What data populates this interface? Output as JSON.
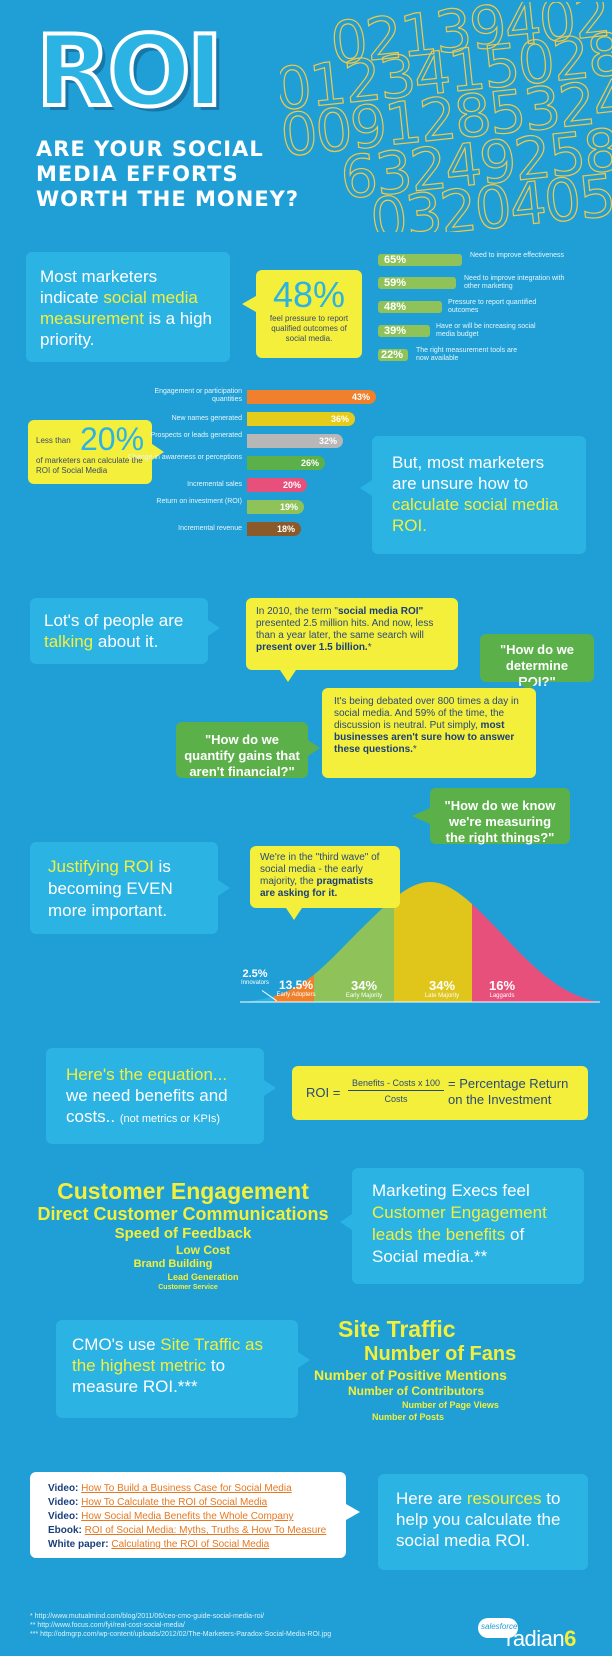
{
  "header": {
    "roi": "ROI",
    "subtitle_lines": [
      "ARE YOUR SOCIAL",
      "MEDIA EFFORTS",
      "WORTH THE MONEY?"
    ],
    "digit_lines": [
      "0213940253",
      "01234150281",
      "0091285324",
      "63249258",
      "03204053"
    ]
  },
  "priority": {
    "text_before": "Most marketers indicate ",
    "text_hl": "social media measurement",
    "text_after": " is a high priority.",
    "stat": "48%",
    "stat_desc": "feel pressure to report qualified outcomes of social media."
  },
  "priority_bars": [
    {
      "value": "65%",
      "label": "Need to improve effectiveness",
      "fraction": 0.65
    },
    {
      "value": "59%",
      "label": "Need to improve integration with other marketing",
      "fraction": 0.59
    },
    {
      "value": "48%",
      "label": "Pressure to report quantified outcomes",
      "fraction": 0.48
    },
    {
      "value": "39%",
      "label": "Have or will be increasing social media budget",
      "fraction": 0.39
    },
    {
      "value": "22%",
      "label": "The right measurement tools are now available",
      "fraction": 0.22
    }
  ],
  "calc": {
    "less_than": "Less than",
    "stat": "20%",
    "stat_desc": "of marketers can calculate the ROI of Social Media",
    "unsure_before": "But, most marketers are unsure how to ",
    "unsure_hl": "calculate social media ROI."
  },
  "metric_bars": [
    {
      "label": "Engagement or participation quantities",
      "value": "43%",
      "fraction": 0.43,
      "color": "#f0802b"
    },
    {
      "label": "New names generated",
      "value": "36%",
      "fraction": 0.36,
      "color": "#e6cc1a"
    },
    {
      "label": "Prospects or leads generated",
      "value": "32%",
      "fraction": 0.32,
      "color": "#b7b7b7"
    },
    {
      "label": "Change in awareness or perceptions",
      "value": "26%",
      "fraction": 0.26,
      "color": "#5cb04a"
    },
    {
      "label": "Incremental sales",
      "value": "20%",
      "fraction": 0.2,
      "color": "#e8507c"
    },
    {
      "label": "Return on investment (ROI)",
      "value": "19%",
      "fraction": 0.19,
      "color": "#8fc35a"
    },
    {
      "label": "Incremental revenue",
      "value": "18%",
      "fraction": 0.18,
      "color": "#8a5a2a"
    }
  ],
  "talking": {
    "text_before": "Lot's of people are ",
    "text_hl": "talking",
    "text_after": " about it.",
    "bubble1_a": "In 2010, the term \"",
    "bubble1_b": "social media ROI\"",
    "bubble1_c": " presented 2.5 million hits. And now, less than a year later, the same search will ",
    "bubble1_d": "present over 1.5 billion.",
    "bubble1_e": "*",
    "q1": "\"How do we determine ROI?\"",
    "bubble2_a": "It's being debated over 800 times a day in social media. And 59% of the time, the discussion is neutral. Put simply, ",
    "bubble2_b": "most businesses aren't sure how to answer these questions.",
    "bubble2_c": "*",
    "q2": "\"How do we quantify gains that aren't financial?\"",
    "q3": "\"How do we know we're measuring the right things?\""
  },
  "justify": {
    "text_hl": "Justifying ROI",
    "text_after": " is becoming EVEN more important.",
    "bubble_a": "We're in the \"third wave\" of social media - the early majority, the ",
    "bubble_b": "pragmatists are asking for it."
  },
  "adoption": [
    {
      "value": "2.5%",
      "label": "Innovators",
      "color": "#2bb3e4"
    },
    {
      "value": "13.5%",
      "label": "Early Adopters",
      "color": "#f0802b"
    },
    {
      "value": "34%",
      "label": "Early Majority",
      "color": "#8fc35a"
    },
    {
      "value": "34%",
      "label": "Late Majority",
      "color": "#e0c51a"
    },
    {
      "value": "16%",
      "label": "Laggards",
      "color": "#e8507c"
    }
  ],
  "equation": {
    "text_hl": "Here's the equation...",
    "text_after": "we need benefits and costs..",
    "note": "(not metrics or KPIs)",
    "roi": "ROI =",
    "numerator": "Benefits - Costs x 100",
    "denominator": "Costs",
    "result": "= Percentage Return on the Investment"
  },
  "engagement": {
    "list": [
      "Customer Engagement",
      "Direct Customer Communications",
      "Speed of Feedback",
      "Low Cost",
      "Brand Building",
      "Lead Generation",
      "Customer Service"
    ],
    "text_before": "Marketing Execs feel ",
    "text_hl": "Customer Engagement leads the benefits",
    "text_after": " of Social media.**"
  },
  "traffic": {
    "text_before": "CMO's use ",
    "text_hl": "Site Traffic as the highest metric",
    "text_after": " to measure ROI.***",
    "list": [
      "Site Traffic",
      "Number of Fans",
      "Number of Positive Mentions",
      "Number of Contributors",
      "Number of Page Views",
      "Number of Posts"
    ]
  },
  "resources": {
    "items": [
      {
        "type": "Video:",
        "title": "How To Build a Business Case for Social Media"
      },
      {
        "type": "Video:",
        "title": "How To Calculate the ROI of Social Media"
      },
      {
        "type": "Video:",
        "title": "How Social Media Benefits the Whole Company"
      },
      {
        "type": "Ebook:",
        "title": "ROI of Social Media: Myths, Truths & How To Measure"
      },
      {
        "type": "White paper:",
        "title": "Calculating the ROI of Social Media"
      }
    ],
    "text_before": "Here are ",
    "text_hl": "resources",
    "text_after": " to help you calculate the social media ROI."
  },
  "footnotes": [
    "* http://www.mutualmind.com/blog/2011/06/ceo-cmo-guide-social-media-roi/",
    "** http://www.focus.com/fyi/real-cost-social-media/",
    "*** http://odmgrp.com/wp-content/uploads/2012/02/The-Marketers-Paradox-Social-Media-ROI.jpg"
  ],
  "logo": {
    "salesforce": "salesforce",
    "radian": "radian",
    "six": "6"
  }
}
